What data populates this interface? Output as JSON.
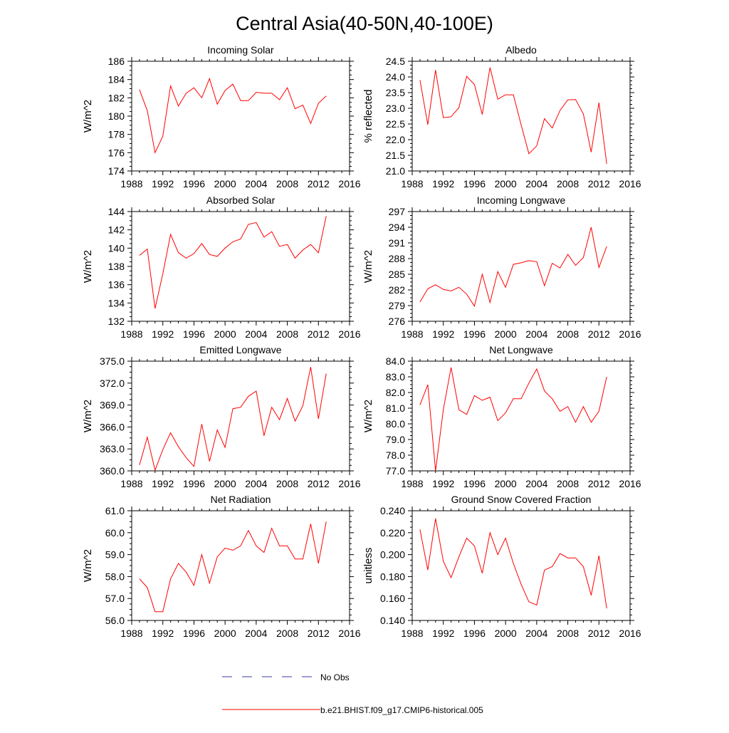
{
  "figure": {
    "title": "Central Asia(40-50N,40-100E)"
  },
  "colors": {
    "model_line": "#ff0000",
    "obs_line": "#3a3aa0",
    "axis": "#000000"
  },
  "legend": {
    "obs_label": "No Obs",
    "model_label": "b.e21.BHIST.f09_g17.CMIP6-historical.005"
  },
  "chart_data": [
    {
      "type": "line",
      "title": "Incoming Solar",
      "xlabel": "",
      "ylabel": "W/m^2",
      "xlim": [
        1988,
        2016
      ],
      "ylim": [
        174,
        186
      ],
      "xticks": [
        1988,
        1992,
        1996,
        2000,
        2004,
        2008,
        2012,
        2016
      ],
      "yticks": [
        174,
        176,
        178,
        180,
        182,
        184,
        186
      ],
      "ydecimals": 0,
      "x": [
        1989,
        1990,
        1991,
        1992,
        1993,
        1994,
        1995,
        1996,
        1997,
        1998,
        1999,
        2000,
        2001,
        2002,
        2003,
        2004,
        2005,
        2006,
        2007,
        2008,
        2009,
        2010,
        2011,
        2012,
        2013
      ],
      "series": [
        {
          "name": "b.e21.BHIST.f09_g17.CMIP6-historical.005",
          "values": [
            182.9,
            180.6,
            176.0,
            177.8,
            183.3,
            181.1,
            182.5,
            183.1,
            182.0,
            184.1,
            181.3,
            182.8,
            183.5,
            181.7,
            181.7,
            182.6,
            182.5,
            182.5,
            181.8,
            183.1,
            180.8,
            181.2,
            179.2,
            181.4,
            182.2
          ]
        }
      ]
    },
    {
      "type": "line",
      "title": "Albedo",
      "xlabel": "",
      "ylabel": "% reflected",
      "xlim": [
        1988,
        2016
      ],
      "ylim": [
        21.0,
        24.5
      ],
      "xticks": [
        1988,
        1992,
        1996,
        2000,
        2004,
        2008,
        2012,
        2016
      ],
      "yticks": [
        21.0,
        21.5,
        22.0,
        22.5,
        23.0,
        23.5,
        24.0,
        24.5
      ],
      "ydecimals": 1,
      "x": [
        1989,
        1990,
        1991,
        1992,
        1993,
        1994,
        1995,
        1996,
        1997,
        1998,
        1999,
        2000,
        2001,
        2002,
        2003,
        2004,
        2005,
        2006,
        2007,
        2008,
        2009,
        2010,
        2011,
        2012,
        2013
      ],
      "series": [
        {
          "name": "b.e21.BHIST.f09_g17.CMIP6-historical.005",
          "values": [
            23.9,
            22.48,
            24.22,
            22.7,
            22.73,
            23.02,
            24.02,
            23.76,
            22.8,
            24.3,
            23.29,
            23.43,
            23.43,
            22.47,
            21.55,
            21.8,
            22.67,
            22.37,
            22.93,
            23.27,
            23.28,
            22.82,
            21.6,
            23.18,
            21.23
          ]
        }
      ]
    },
    {
      "type": "line",
      "title": "Absorbed Solar",
      "xlabel": "",
      "ylabel": "W/m^2",
      "xlim": [
        1988,
        2016
      ],
      "ylim": [
        132,
        144
      ],
      "xticks": [
        1988,
        1992,
        1996,
        2000,
        2004,
        2008,
        2012,
        2016
      ],
      "yticks": [
        132,
        134,
        136,
        138,
        140,
        142,
        144
      ],
      "ydecimals": 0,
      "x": [
        1989,
        1990,
        1991,
        1992,
        1993,
        1994,
        1995,
        1996,
        1997,
        1998,
        1999,
        2000,
        2001,
        2002,
        2003,
        2004,
        2005,
        2006,
        2007,
        2008,
        2009,
        2010,
        2011,
        2012,
        2013
      ],
      "series": [
        {
          "name": "b.e21.BHIST.f09_g17.CMIP6-historical.005",
          "values": [
            139.2,
            139.9,
            133.4,
            137.2,
            141.5,
            139.5,
            138.9,
            139.4,
            140.5,
            139.3,
            139.1,
            140.0,
            140.7,
            141.0,
            142.6,
            142.8,
            141.2,
            141.8,
            140.2,
            140.4,
            138.9,
            139.8,
            140.4,
            139.5,
            143.5
          ]
        }
      ]
    },
    {
      "type": "line",
      "title": "Incoming Longwave",
      "xlabel": "",
      "ylabel": "W/m^2",
      "xlim": [
        1988,
        2016
      ],
      "ylim": [
        276,
        297
      ],
      "xticks": [
        1988,
        1992,
        1996,
        2000,
        2004,
        2008,
        2012,
        2016
      ],
      "yticks": [
        276,
        279,
        282,
        285,
        288,
        291,
        294,
        297
      ],
      "ydecimals": 0,
      "x": [
        1989,
        1990,
        1991,
        1992,
        1993,
        1994,
        1995,
        1996,
        1997,
        1998,
        1999,
        2000,
        2001,
        2002,
        2003,
        2004,
        2005,
        2006,
        2007,
        2008,
        2009,
        2010,
        2011,
        2012,
        2013
      ],
      "series": [
        {
          "name": "b.e21.BHIST.f09_g17.CMIP6-historical.005",
          "values": [
            279.7,
            282.2,
            283.0,
            282.1,
            281.8,
            282.5,
            281.2,
            278.9,
            285.0,
            279.6,
            285.5,
            282.5,
            286.9,
            287.2,
            287.6,
            287.4,
            282.8,
            287.1,
            286.2,
            288.8,
            286.7,
            288.2,
            294.0,
            286.3,
            290.3
          ]
        }
      ]
    },
    {
      "type": "line",
      "title": "Emitted Longwave",
      "xlabel": "",
      "ylabel": "W/m^2",
      "xlim": [
        1988,
        2016
      ],
      "ylim": [
        360,
        375
      ],
      "xticks": [
        1988,
        1992,
        1996,
        2000,
        2004,
        2008,
        2012,
        2016
      ],
      "yticks": [
        360,
        363,
        366,
        369,
        372,
        375
      ],
      "ydecimals": 1,
      "x": [
        1989,
        1990,
        1991,
        1992,
        1993,
        1994,
        1995,
        1996,
        1997,
        1998,
        1999,
        2000,
        2001,
        2002,
        2003,
        2004,
        2005,
        2006,
        2007,
        2008,
        2009,
        2010,
        2011,
        2012,
        2013
      ],
      "series": [
        {
          "name": "b.e21.BHIST.f09_g17.CMIP6-historical.005",
          "values": [
            360.8,
            364.6,
            360.1,
            362.9,
            365.2,
            363.3,
            361.8,
            360.6,
            366.4,
            361.3,
            365.6,
            363.2,
            368.5,
            368.7,
            370.2,
            370.9,
            364.8,
            368.7,
            367.0,
            369.9,
            366.8,
            368.9,
            374.2,
            367.1,
            373.3
          ]
        }
      ]
    },
    {
      "type": "line",
      "title": "Net Longwave",
      "xlabel": "",
      "ylabel": "W/m^2",
      "xlim": [
        1988,
        2016
      ],
      "ylim": [
        77.0,
        84.0
      ],
      "xticks": [
        1988,
        1992,
        1996,
        2000,
        2004,
        2008,
        2012,
        2016
      ],
      "yticks": [
        77,
        78,
        79,
        80,
        81,
        82,
        83,
        84
      ],
      "ydecimals": 1,
      "x": [
        1989,
        1990,
        1991,
        1992,
        1993,
        1994,
        1995,
        1996,
        1997,
        1998,
        1999,
        2000,
        2001,
        2002,
        2003,
        2004,
        2005,
        2006,
        2007,
        2008,
        2009,
        2010,
        2011,
        2012,
        2013
      ],
      "series": [
        {
          "name": "b.e21.BHIST.f09_g17.CMIP6-historical.005",
          "values": [
            81.2,
            82.5,
            77.0,
            80.9,
            83.6,
            80.9,
            80.6,
            81.8,
            81.5,
            81.7,
            80.2,
            80.7,
            81.6,
            81.6,
            82.6,
            83.5,
            82.1,
            81.6,
            80.8,
            81.1,
            80.1,
            81.1,
            80.1,
            80.8,
            83.0
          ]
        }
      ]
    },
    {
      "type": "line",
      "title": "Net Radiation",
      "xlabel": "",
      "ylabel": "W/m^2",
      "xlim": [
        1988,
        2016
      ],
      "ylim": [
        56.0,
        61.0
      ],
      "xticks": [
        1988,
        1992,
        1996,
        2000,
        2004,
        2008,
        2012,
        2016
      ],
      "yticks": [
        56,
        57,
        58,
        59,
        60,
        61
      ],
      "ydecimals": 1,
      "x": [
        1989,
        1990,
        1991,
        1992,
        1993,
        1994,
        1995,
        1996,
        1997,
        1998,
        1999,
        2000,
        2001,
        2002,
        2003,
        2004,
        2005,
        2006,
        2007,
        2008,
        2009,
        2010,
        2011,
        2012,
        2013
      ],
      "series": [
        {
          "name": "b.e21.BHIST.f09_g17.CMIP6-historical.005",
          "values": [
            57.9,
            57.5,
            56.4,
            56.4,
            57.9,
            58.6,
            58.2,
            57.6,
            59.0,
            57.7,
            58.9,
            59.3,
            59.2,
            59.4,
            60.1,
            59.4,
            59.1,
            60.2,
            59.4,
            59.4,
            58.8,
            58.8,
            60.4,
            58.6,
            60.5
          ]
        }
      ]
    },
    {
      "type": "line",
      "title": "Ground Snow Covered Fraction",
      "xlabel": "",
      "ylabel": "unitless",
      "xlim": [
        1988,
        2016
      ],
      "ylim": [
        0.14,
        0.24
      ],
      "xticks": [
        1988,
        1992,
        1996,
        2000,
        2004,
        2008,
        2012,
        2016
      ],
      "yticks": [
        0.14,
        0.16,
        0.18,
        0.2,
        0.22,
        0.24
      ],
      "ydecimals": 3,
      "x": [
        1989,
        1990,
        1991,
        1992,
        1993,
        1994,
        1995,
        1996,
        1997,
        1998,
        1999,
        2000,
        2001,
        2002,
        2003,
        2004,
        2005,
        2006,
        2007,
        2008,
        2009,
        2010,
        2011,
        2012,
        2013
      ],
      "series": [
        {
          "name": "b.e21.BHIST.f09_g17.CMIP6-historical.005",
          "values": [
            0.223,
            0.186,
            0.233,
            0.194,
            0.179,
            0.198,
            0.215,
            0.208,
            0.183,
            0.22,
            0.2,
            0.215,
            0.192,
            0.173,
            0.157,
            0.154,
            0.186,
            0.189,
            0.201,
            0.197,
            0.197,
            0.189,
            0.163,
            0.199,
            0.151
          ]
        }
      ]
    }
  ]
}
